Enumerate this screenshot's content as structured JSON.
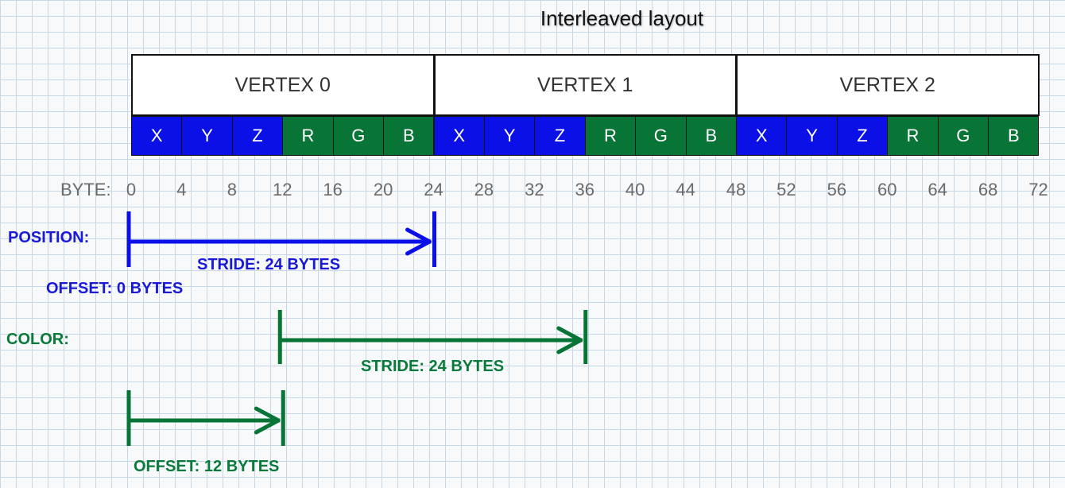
{
  "title": "Interleaved layout",
  "vertices": [
    "VERTEX 0",
    "VERTEX 1",
    "VERTEX 2"
  ],
  "components": [
    {
      "label": "X",
      "kind": "position"
    },
    {
      "label": "Y",
      "kind": "position"
    },
    {
      "label": "Z",
      "kind": "position"
    },
    {
      "label": "R",
      "kind": "color"
    },
    {
      "label": "G",
      "kind": "color"
    },
    {
      "label": "B",
      "kind": "color"
    }
  ],
  "byte_axis": {
    "label": "BYTE:",
    "ticks": [
      0,
      4,
      8,
      12,
      16,
      20,
      24,
      28,
      32,
      36,
      40,
      44,
      48,
      52,
      56,
      60,
      64,
      68,
      72
    ]
  },
  "position": {
    "label": "POSITION:",
    "stride_label": "STRIDE: 24 BYTES",
    "offset_label": "OFFSET: 0 BYTES",
    "stride_bytes": 24,
    "offset_bytes": 0
  },
  "color": {
    "label": "COLOR:",
    "stride_label": "STRIDE: 24 BYTES",
    "offset_label": "OFFSET: 12 BYTES",
    "stride_bytes": 24,
    "offset_bytes": 12
  },
  "colors": {
    "position": "#0a10e6",
    "color": "#087436"
  }
}
